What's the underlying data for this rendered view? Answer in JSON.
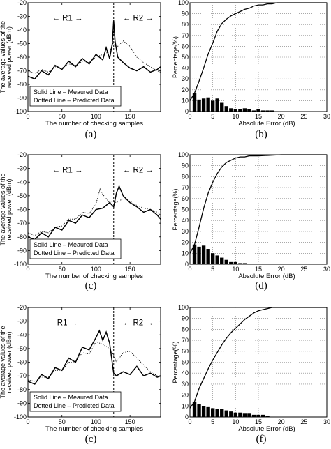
{
  "chart_data": [
    {
      "type": "line",
      "caption": "(a)",
      "xlabel": "The number of checking samples",
      "ylabel_line1": "The average values of the",
      "ylabel_line2": "received power (dBm)",
      "xlim": [
        0,
        195
      ],
      "ylim": [
        -100,
        -20
      ],
      "xticks": [
        0,
        50,
        100,
        150
      ],
      "yticks": [
        -20,
        -30,
        -40,
        -50,
        -60,
        -70,
        -80,
        -90,
        -100
      ],
      "divider_x": 126,
      "region_left": "← R1 →",
      "region_right": "R2 →",
      "region_right_prefix": "←",
      "legend": [
        "Solid Line – Meaured Data",
        "Dotted Line – Predicted Data"
      ],
      "series": [
        {
          "style": "solid",
          "x": [
            0,
            10,
            20,
            30,
            40,
            50,
            60,
            70,
            80,
            90,
            100,
            110,
            115,
            120,
            124,
            126,
            128,
            132,
            140,
            150,
            160,
            170,
            180,
            190,
            195
          ],
          "y": [
            -74,
            -76,
            -70,
            -73,
            -66,
            -69,
            -63,
            -67,
            -61,
            -65,
            -58,
            -62,
            -53,
            -61,
            -50,
            -33,
            -48,
            -60,
            -64,
            -68,
            -70,
            -67,
            -71,
            -69,
            -67
          ]
        },
        {
          "style": "dotted",
          "x": [
            0,
            10,
            20,
            30,
            40,
            50,
            60,
            70,
            80,
            90,
            100,
            110,
            120,
            126,
            130,
            140,
            150,
            160,
            170,
            180,
            190,
            195
          ],
          "y": [
            -70,
            -72,
            -69,
            -71,
            -67,
            -68,
            -65,
            -66,
            -63,
            -64,
            -60,
            -58,
            -56,
            -49,
            -53,
            -48,
            -52,
            -60,
            -64,
            -67,
            -70,
            -71
          ]
        }
      ]
    },
    {
      "type": "bar+line",
      "caption": "(b)",
      "xlabel": "Absolute Error (dB)",
      "ylabel": "Percentage(%)",
      "xlim": [
        0,
        30
      ],
      "ylim": [
        0,
        100
      ],
      "xticks": [
        0,
        5,
        10,
        15,
        20,
        25,
        30
      ],
      "yticks": [
        0,
        10,
        20,
        30,
        40,
        50,
        60,
        70,
        80,
        90,
        100
      ],
      "bars": {
        "x": [
          1,
          2,
          3,
          4,
          5,
          6,
          7,
          8,
          9,
          10,
          11,
          12,
          13,
          14,
          15,
          16,
          17,
          18
        ],
        "values": [
          17,
          11,
          12,
          13,
          10,
          12,
          8,
          5,
          3,
          2,
          2,
          3,
          2,
          1,
          2,
          1,
          1,
          1
        ]
      },
      "cdf": {
        "x": [
          0,
          1,
          2,
          3,
          4,
          5,
          6,
          7,
          8,
          9,
          10,
          11,
          12,
          13,
          14,
          15,
          16,
          17,
          18,
          19,
          20,
          30
        ],
        "y": [
          10,
          17,
          28,
          40,
          53,
          63,
          74,
          81,
          85,
          88,
          90,
          92,
          94,
          95,
          97,
          98,
          98,
          99,
          99,
          100,
          100,
          100
        ]
      }
    },
    {
      "type": "line",
      "caption": "(c)",
      "xlabel": "The number of checking samples",
      "ylabel_line1": "The average values of the",
      "ylabel_line2": "received power (dBm)",
      "xlim": [
        0,
        195
      ],
      "ylim": [
        -100,
        -20
      ],
      "xticks": [
        0,
        50,
        100,
        150
      ],
      "yticks": [
        -20,
        -30,
        -40,
        -50,
        -60,
        -70,
        -80,
        -90,
        -100
      ],
      "divider_x": 126,
      "region_left": "← R1 →",
      "region_right": "R2 →",
      "region_right_prefix": "←",
      "legend": [
        "Solid Line – Meaured Data",
        "Dotted Line – Predicted Data"
      ],
      "series": [
        {
          "style": "solid",
          "x": [
            0,
            10,
            20,
            30,
            40,
            50,
            60,
            70,
            80,
            90,
            100,
            110,
            120,
            126,
            130,
            134,
            140,
            150,
            160,
            170,
            180,
            190,
            195
          ],
          "y": [
            -80,
            -82,
            -77,
            -80,
            -73,
            -75,
            -68,
            -70,
            -64,
            -66,
            -60,
            -59,
            -55,
            -58,
            -48,
            -43,
            -50,
            -55,
            -58,
            -62,
            -60,
            -64,
            -67
          ]
        },
        {
          "style": "dotted",
          "x": [
            0,
            10,
            20,
            30,
            40,
            50,
            60,
            70,
            80,
            90,
            100,
            106,
            110,
            120,
            126,
            130,
            140,
            150,
            160,
            170,
            180,
            190,
            195
          ],
          "y": [
            -77,
            -79,
            -76,
            -77,
            -73,
            -72,
            -67,
            -67,
            -62,
            -63,
            -56,
            -45,
            -49,
            -55,
            -54,
            -55,
            -52,
            -54,
            -57,
            -59,
            -60,
            -62,
            -64
          ]
        }
      ]
    },
    {
      "type": "bar+line",
      "caption": "(d)",
      "xlabel": "Absolute Error (dB)",
      "ylabel": "Percentage(%)",
      "xlim": [
        0,
        30
      ],
      "ylim": [
        0,
        100
      ],
      "xticks": [
        0,
        5,
        10,
        15,
        20,
        25,
        30
      ],
      "yticks": [
        0,
        10,
        20,
        30,
        40,
        50,
        60,
        70,
        80,
        90,
        100
      ],
      "bars": {
        "x": [
          1,
          2,
          3,
          4,
          5,
          6,
          7,
          8,
          9,
          10,
          11,
          12
        ],
        "values": [
          18,
          16,
          17,
          14,
          10,
          8,
          6,
          4,
          2,
          2,
          1,
          1
        ]
      },
      "cdf": {
        "x": [
          0,
          1,
          2,
          3,
          4,
          5,
          6,
          7,
          8,
          9,
          10,
          11,
          12,
          13,
          14,
          15,
          20,
          30
        ],
        "y": [
          10,
          18,
          34,
          51,
          65,
          75,
          83,
          89,
          93,
          95,
          97,
          98,
          98,
          99,
          99,
          99,
          100,
          100
        ]
      }
    },
    {
      "type": "line",
      "caption": "(c)",
      "xlabel": "The number of checking samples",
      "ylabel_line1": "The average values of the",
      "ylabel_line2": "received power (dBm)",
      "xlim": [
        0,
        195
      ],
      "ylim": [
        -100,
        -20
      ],
      "xticks": [
        0,
        50,
        100,
        150
      ],
      "yticks": [
        -20,
        -30,
        -40,
        -50,
        -60,
        -70,
        -80,
        -90,
        -100
      ],
      "divider_x": 126,
      "region_left": "R1 →",
      "region_right": "R2 →",
      "region_right_prefix": "←",
      "legend": [
        "Solid Line – Meaured Data",
        "Dotted Line – Predicted Data"
      ],
      "series": [
        {
          "style": "solid",
          "x": [
            0,
            10,
            20,
            30,
            40,
            50,
            60,
            70,
            80,
            90,
            100,
            105,
            110,
            115,
            120,
            126,
            130,
            140,
            150,
            160,
            170,
            180,
            190,
            195
          ],
          "y": [
            -74,
            -76,
            -69,
            -72,
            -64,
            -66,
            -57,
            -60,
            -49,
            -51,
            -42,
            -37,
            -44,
            -38,
            -46,
            -68,
            -70,
            -67,
            -69,
            -63,
            -70,
            -68,
            -71,
            -70
          ]
        },
        {
          "style": "dotted",
          "x": [
            0,
            10,
            20,
            30,
            40,
            50,
            60,
            70,
            80,
            90,
            100,
            110,
            120,
            126,
            130,
            140,
            150,
            160,
            170,
            180,
            190,
            195
          ],
          "y": [
            -73,
            -74,
            -71,
            -71,
            -66,
            -66,
            -60,
            -60,
            -53,
            -54,
            -45,
            -47,
            -50,
            -55,
            -60,
            -53,
            -52,
            -57,
            -62,
            -67,
            -70,
            -70
          ]
        }
      ]
    },
    {
      "type": "bar+line",
      "caption": "(f)",
      "xlabel": "Absolute Error (dB)",
      "ylabel": "Percentage(%)",
      "xlim": [
        0,
        30
      ],
      "ylim": [
        0,
        100
      ],
      "xticks": [
        0,
        5,
        10,
        15,
        20,
        25,
        30
      ],
      "yticks": [
        0,
        10,
        20,
        30,
        40,
        50,
        60,
        70,
        80,
        90,
        100
      ],
      "bars": {
        "x": [
          1,
          2,
          3,
          4,
          5,
          6,
          7,
          8,
          9,
          10,
          11,
          12,
          13,
          14,
          15,
          16,
          17
        ],
        "values": [
          14,
          12,
          10,
          9,
          8,
          7,
          7,
          6,
          5,
          4,
          4,
          3,
          3,
          2,
          2,
          2,
          1
        ]
      },
      "cdf": {
        "x": [
          0,
          1,
          2,
          3,
          4,
          5,
          6,
          7,
          8,
          9,
          10,
          11,
          12,
          13,
          14,
          15,
          16,
          17,
          18,
          20,
          30
        ],
        "y": [
          8,
          14,
          26,
          35,
          44,
          52,
          59,
          66,
          72,
          77,
          81,
          85,
          89,
          92,
          95,
          97,
          98,
          99,
          100,
          100,
          100
        ]
      }
    }
  ]
}
